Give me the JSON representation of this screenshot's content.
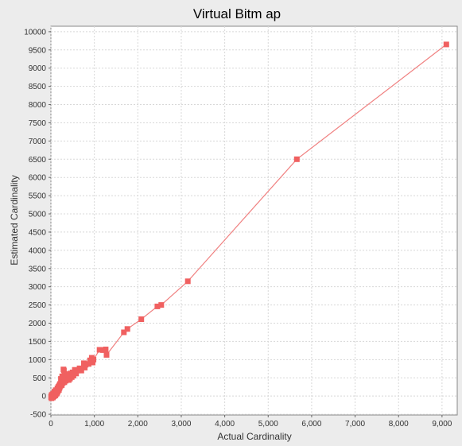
{
  "chart_data": {
    "type": "scatter",
    "title": "Virtual Bitm ap",
    "xlabel": "Actual Cardinality",
    "ylabel": "Estimated Cardinality",
    "xlim": [
      0,
      9350
    ],
    "ylim": [
      -520,
      10150
    ],
    "x_ticks": [
      "0",
      "1,000",
      "2,000",
      "3,000",
      "4,000",
      "5,000",
      "6,000",
      "7,000",
      "8,000",
      "9,000"
    ],
    "y_ticks": [
      "-500",
      "0",
      "500",
      "1000",
      "1500",
      "2000",
      "2500",
      "3000",
      "3500",
      "4000",
      "4500",
      "5000",
      "5500",
      "6000",
      "6500",
      "7000",
      "7500",
      "8000",
      "8500",
      "9000",
      "9500",
      "10000"
    ],
    "grid": true,
    "legend": "none",
    "series_color": "#f06060",
    "line_color": "#f08080",
    "points": [
      [
        9100,
        9650
      ],
      [
        5660,
        6500
      ],
      [
        3150,
        3150
      ],
      [
        2540,
        2500
      ],
      [
        2450,
        2460
      ],
      [
        2080,
        2110
      ],
      [
        1760,
        1840
      ],
      [
        1680,
        1750
      ],
      [
        1260,
        1280
      ],
      [
        1280,
        1130
      ],
      [
        1200,
        1260
      ],
      [
        1120,
        1270
      ],
      [
        980,
        1000
      ],
      [
        960,
        920
      ],
      [
        940,
        1050
      ],
      [
        900,
        980
      ],
      [
        870,
        880
      ],
      [
        800,
        860
      ],
      [
        780,
        780
      ],
      [
        760,
        900
      ],
      [
        700,
        700
      ],
      [
        660,
        760
      ],
      [
        620,
        700
      ],
      [
        580,
        620
      ],
      [
        550,
        720
      ],
      [
        520,
        560
      ],
      [
        500,
        650
      ],
      [
        480,
        520
      ],
      [
        460,
        560
      ],
      [
        440,
        480
      ],
      [
        420,
        600
      ],
      [
        400,
        560
      ],
      [
        380,
        440
      ],
      [
        360,
        470
      ],
      [
        340,
        420
      ],
      [
        330,
        480
      ],
      [
        320,
        600
      ],
      [
        310,
        380
      ],
      [
        300,
        700
      ],
      [
        290,
        730
      ],
      [
        280,
        460
      ],
      [
        270,
        360
      ],
      [
        260,
        540
      ],
      [
        250,
        300
      ],
      [
        240,
        400
      ],
      [
        230,
        470
      ],
      [
        220,
        280
      ],
      [
        210,
        330
      ],
      [
        200,
        240
      ],
      [
        190,
        290
      ],
      [
        180,
        210
      ],
      [
        170,
        250
      ],
      [
        160,
        180
      ],
      [
        150,
        210
      ],
      [
        140,
        160
      ],
      [
        130,
        140
      ],
      [
        120,
        130
      ],
      [
        110,
        160
      ],
      [
        100,
        110
      ],
      [
        90,
        80
      ],
      [
        80,
        120
      ],
      [
        70,
        60
      ],
      [
        60,
        70
      ],
      [
        50,
        40
      ],
      [
        40,
        50
      ],
      [
        30,
        20
      ],
      [
        20,
        30
      ],
      [
        10,
        0
      ],
      [
        5,
        -30
      ],
      [
        15,
        -60
      ],
      [
        25,
        -20
      ],
      [
        35,
        10
      ],
      [
        45,
        -40
      ],
      [
        55,
        20
      ],
      [
        65,
        -10
      ],
      [
        75,
        30
      ],
      [
        85,
        10
      ],
      [
        95,
        40
      ],
      [
        105,
        20
      ],
      [
        115,
        60
      ],
      [
        125,
        90
      ],
      [
        135,
        70
      ],
      [
        145,
        100
      ],
      [
        155,
        130
      ],
      [
        165,
        150
      ],
      [
        175,
        190
      ],
      [
        185,
        170
      ],
      [
        195,
        220
      ],
      [
        205,
        260
      ],
      [
        215,
        300
      ],
      [
        235,
        320
      ],
      [
        255,
        380
      ],
      [
        275,
        410
      ],
      [
        295,
        500
      ],
      [
        315,
        520
      ],
      [
        345,
        540
      ],
      [
        375,
        590
      ],
      [
        410,
        440
      ],
      [
        450,
        620
      ],
      [
        490,
        600
      ]
    ]
  }
}
